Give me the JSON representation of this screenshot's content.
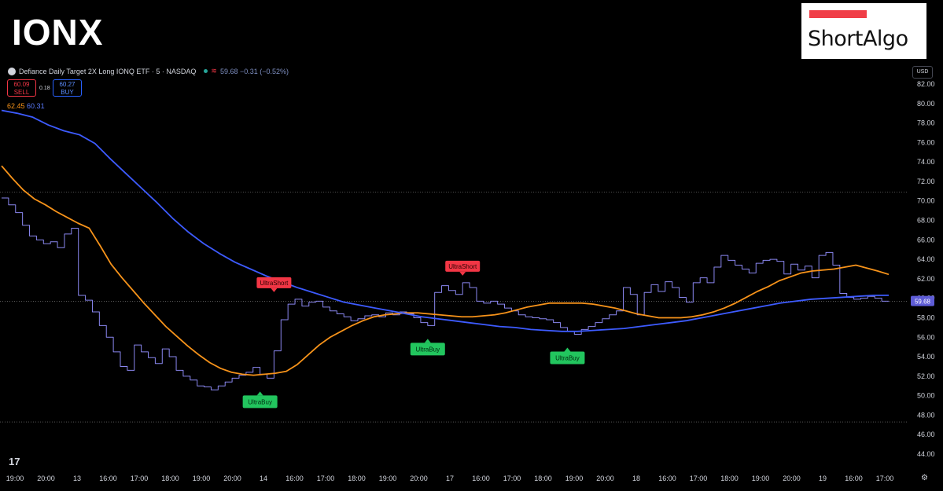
{
  "header": {
    "ticker": "IONX",
    "brand": "ShortAlgo"
  },
  "legend": {
    "instrument": "Defiance Daily Target 2X Long IONQ ETF · 5 · NASDAQ",
    "last": "59.68 −0.31 (−0.52%)",
    "sell_price": "60.09",
    "sell_label": "SELL",
    "buy_price": "60.27",
    "buy_label": "BUY",
    "spread": "0.18",
    "ma_orange": "62.45",
    "ma_blue": "60.31"
  },
  "currency": "USD",
  "colors": {
    "price": "#8a87f0",
    "ma_orange": "#f7931a",
    "ma_blue": "#3d5bff",
    "short": "#f23645",
    "buy": "#22c55e"
  },
  "chart_data": {
    "type": "line",
    "ylim": [
      44,
      82
    ],
    "y_ticks": [
      "82.00",
      "80.00",
      "78.00",
      "76.00",
      "74.00",
      "72.00",
      "70.00",
      "68.00",
      "66.00",
      "64.00",
      "62.00",
      "60.00",
      "58.00",
      "56.00",
      "54.00",
      "52.00",
      "50.00",
      "48.00",
      "46.00",
      "44.00"
    ],
    "x_ticks": [
      "19:00",
      "20:00",
      "13",
      "16:00",
      "17:00",
      "18:00",
      "19:00",
      "20:00",
      "14",
      "16:00",
      "17:00",
      "18:00",
      "19:00",
      "20:00",
      "17",
      "16:00",
      "17:00",
      "18:00",
      "19:00",
      "20:00",
      "18",
      "16:00",
      "17:00",
      "18:00",
      "19:00",
      "20:00",
      "19",
      "16:00",
      "17:00"
    ],
    "last_price_label": "59.68",
    "series": [
      {
        "key": "price",
        "values": [
          70.3,
          69.6,
          68.8,
          67.5,
          66.4,
          66.0,
          65.6,
          65.8,
          65.2,
          66.6,
          67.2,
          60.3,
          59.8,
          58.6,
          57.2,
          56.0,
          54.5,
          53.0,
          52.6,
          55.2,
          54.5,
          53.9,
          53.3,
          54.8,
          54.0,
          52.6,
          52.0,
          51.6,
          51.0,
          50.9,
          50.6,
          51.0,
          51.4,
          51.8,
          52.1,
          52.4,
          52.9,
          52.2,
          51.8,
          54.6,
          57.8,
          59.4,
          59.9,
          59.2,
          59.6,
          59.7,
          59.1,
          58.7,
          58.4,
          58.1,
          57.7,
          57.9,
          58.2,
          58.3,
          58.1,
          58.5,
          58.3,
          58.6,
          58.4,
          58.0,
          57.5,
          57.2,
          60.6,
          61.3,
          60.8,
          60.4,
          61.6,
          61.1,
          59.7,
          59.5,
          59.7,
          59.4,
          59.0,
          58.7,
          58.3,
          58.1,
          58.0,
          57.9,
          57.8,
          57.5,
          57.0,
          56.6,
          56.3,
          56.8,
          57.1,
          57.5,
          57.9,
          58.3,
          58.7,
          61.1,
          60.4,
          58.3,
          60.6,
          61.4,
          60.7,
          61.7,
          61.1,
          60.1,
          59.6,
          61.6,
          62.1,
          61.6,
          63.2,
          64.4,
          63.9,
          63.4,
          63.0,
          62.6,
          63.6,
          63.9,
          64.0,
          63.8,
          62.5,
          63.5,
          62.9,
          63.3,
          62.1,
          64.4,
          64.7,
          63.4,
          60.5,
          60.1,
          59.9,
          60.0,
          60.2,
          60.0,
          59.7,
          59.68
        ]
      },
      {
        "key": "ma_orange",
        "values": [
          73.6,
          72.3,
          71.1,
          70.2,
          69.6,
          68.9,
          68.3,
          67.7,
          67.2,
          65.4,
          63.5,
          62.1,
          60.8,
          59.5,
          58.3,
          57.1,
          56.1,
          55.1,
          54.2,
          53.4,
          52.8,
          52.4,
          52.2,
          52.1,
          52.2,
          52.3,
          52.5,
          53.2,
          54.2,
          55.2,
          56.0,
          56.6,
          57.2,
          57.7,
          58.1,
          58.3,
          58.4,
          58.5,
          58.5,
          58.4,
          58.3,
          58.2,
          58.1,
          58.1,
          58.2,
          58.3,
          58.5,
          58.8,
          59.1,
          59.3,
          59.5,
          59.5,
          59.5,
          59.5,
          59.4,
          59.2,
          59.0,
          58.7,
          58.4,
          58.2,
          58.0,
          58.0,
          58.0,
          58.1,
          58.3,
          58.6,
          59.0,
          59.5,
          60.1,
          60.7,
          61.2,
          61.8,
          62.2,
          62.6,
          62.8,
          62.9,
          63.0,
          63.2,
          63.4,
          63.1,
          62.8,
          62.45
        ]
      },
      {
        "key": "ma_blue",
        "values": [
          79.3,
          79.0,
          78.6,
          77.8,
          77.2,
          76.8,
          75.9,
          74.3,
          72.8,
          71.3,
          69.8,
          68.2,
          66.8,
          65.6,
          64.6,
          63.7,
          63.0,
          62.3,
          61.7,
          61.1,
          60.6,
          60.1,
          59.6,
          59.3,
          59.0,
          58.7,
          58.4,
          58.1,
          57.9,
          57.7,
          57.5,
          57.3,
          57.1,
          57.0,
          56.8,
          56.7,
          56.6,
          56.6,
          56.7,
          56.8,
          56.9,
          57.1,
          57.3,
          57.5,
          57.7,
          58.0,
          58.3,
          58.6,
          58.9,
          59.2,
          59.5,
          59.7,
          59.9,
          60.0,
          60.1,
          60.2,
          60.3,
          60.31
        ]
      }
    ],
    "annotations": [
      {
        "label": "UltraShort",
        "kind": "short",
        "x": 39,
        "y": 59.9
      },
      {
        "label": "UltraShort",
        "kind": "short",
        "x": 66,
        "y": 61.6
      },
      {
        "label": "UltraBuy",
        "kind": "buy",
        "x": 37,
        "y": 51.8
      },
      {
        "label": "UltraBuy",
        "kind": "buy",
        "x": 61,
        "y": 57.2
      },
      {
        "label": "UltraBuy",
        "kind": "buy",
        "x": 81,
        "y": 56.3
      }
    ]
  }
}
